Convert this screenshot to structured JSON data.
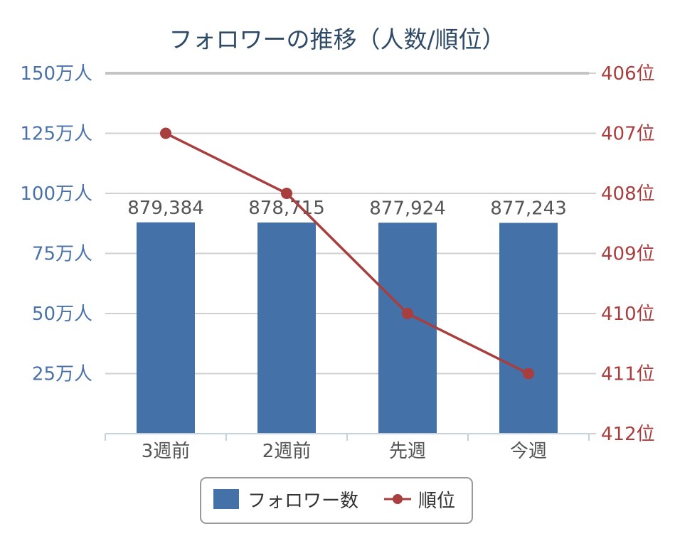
{
  "chart_data": {
    "type": "bar",
    "title": "フォロワーの推移（人数/順位）",
    "categories": [
      "3週前",
      "2週前",
      "先週",
      "今週"
    ],
    "series": [
      {
        "name": "フォロワー数",
        "type": "bar",
        "axis": "left",
        "values": [
          879384,
          878715,
          877924,
          877243
        ],
        "data_labels": [
          "879,384",
          "878,715",
          "877,924",
          "877,243"
        ],
        "color": "#4472a8"
      },
      {
        "name": "順位",
        "type": "line",
        "axis": "right",
        "values": [
          407,
          408,
          410,
          411
        ],
        "color": "#a83e3e"
      }
    ],
    "left_axis": {
      "ylim": [
        0,
        1500000
      ],
      "ticks": [
        250000,
        500000,
        750000,
        1000000,
        1250000,
        1500000
      ],
      "tick_labels": [
        "25万人",
        "50万人",
        "75万人",
        "100万人",
        "125万人",
        "150万人"
      ]
    },
    "right_axis": {
      "ylim": [
        412,
        406
      ],
      "reversed": true,
      "ticks": [
        406,
        407,
        408,
        409,
        410,
        411,
        412
      ],
      "tick_labels": [
        "406位",
        "407位",
        "408位",
        "409位",
        "410位",
        "411位",
        "412位"
      ]
    },
    "grid": true,
    "legend_position": "bottom"
  },
  "colors": {
    "bar": "#4472a8",
    "line": "#a83e3e",
    "grid": "#d0d0d0",
    "axis": "#c5d3e0"
  }
}
